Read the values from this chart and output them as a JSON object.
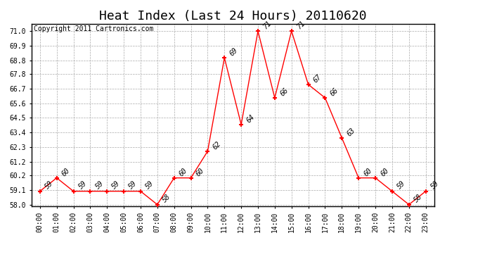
{
  "title": "Heat Index (Last 24 Hours) 20110620",
  "copyright": "Copyright 2011 Cartronics.com",
  "x_labels": [
    "00:00",
    "01:00",
    "02:00",
    "03:00",
    "04:00",
    "05:00",
    "06:00",
    "07:00",
    "08:00",
    "09:00",
    "10:00",
    "11:00",
    "12:00",
    "13:00",
    "14:00",
    "15:00",
    "16:00",
    "17:00",
    "18:00",
    "19:00",
    "20:00",
    "21:00",
    "22:00",
    "23:00"
  ],
  "y_values": [
    59,
    60,
    59,
    59,
    59,
    59,
    59,
    58,
    60,
    60,
    62,
    69,
    64,
    71,
    66,
    71,
    67,
    66,
    63,
    60,
    60,
    59,
    58,
    59
  ],
  "ylim_min": 57.9,
  "ylim_max": 71.55,
  "yticks": [
    58.0,
    59.1,
    60.2,
    61.2,
    62.3,
    63.4,
    64.5,
    65.6,
    66.7,
    67.8,
    68.8,
    69.9,
    71.0
  ],
  "line_color": "#ff0000",
  "marker_color": "#ff0000",
  "bg_color": "#ffffff",
  "grid_color": "#aaaaaa",
  "title_fontsize": 13,
  "label_fontsize": 7,
  "annotation_fontsize": 7,
  "copyright_fontsize": 7
}
